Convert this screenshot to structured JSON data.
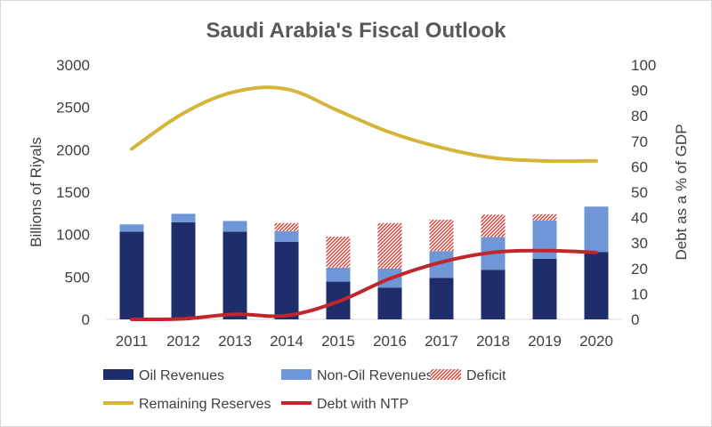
{
  "chart_data": {
    "type": "bar",
    "title": "Saudi Arabia's Fiscal Outlook",
    "ylabel": "Billions of Riyals",
    "y2label": "Debt as a % of GDP",
    "ylim": [
      0,
      3000
    ],
    "y2lim": [
      0,
      100
    ],
    "yticks": [
      "0",
      "500",
      "1000",
      "1500",
      "2000",
      "2500",
      "3000"
    ],
    "y2ticks": [
      "0",
      "10",
      "20",
      "30",
      "40",
      "50",
      "60",
      "70",
      "80",
      "90",
      "100"
    ],
    "categories": [
      "2011",
      "2012",
      "2013",
      "2014",
      "2015",
      "2016",
      "2017",
      "2018",
      "2019",
      "2020"
    ],
    "grid": false,
    "legend_position": "bottom",
    "series": [
      {
        "name": "Oil Revenues",
        "kind": "bar",
        "axis": "left",
        "color": "#1f2d6b",
        "values": [
          1035,
          1145,
          1035,
          915,
          445,
          375,
          490,
          585,
          715,
          795
        ]
      },
      {
        "name": "Non-Oil Revenues",
        "kind": "bar",
        "axis": "left",
        "color": "#6f97d8",
        "values": [
          85,
          100,
          125,
          125,
          165,
          225,
          315,
          385,
          450,
          535
        ]
      },
      {
        "name": "Deficit",
        "kind": "bar",
        "axis": "left",
        "color": "#c0392b",
        "pattern": "hatched",
        "values": [
          0,
          0,
          0,
          95,
          365,
          535,
          370,
          265,
          75,
          0
        ]
      },
      {
        "name": "Remaining Reserves",
        "kind": "line",
        "axis": "right",
        "color": "#d4b53a",
        "values": [
          67,
          81,
          89.5,
          90.5,
          82,
          73.5,
          67.5,
          63.5,
          62.3,
          62.3
        ]
      },
      {
        "name": "Debt with NTP",
        "kind": "line",
        "axis": "right",
        "color": "#c0272d",
        "values": [
          0,
          0.2,
          2,
          1.5,
          7,
          16,
          22.5,
          26.3,
          27,
          26.3
        ]
      }
    ]
  }
}
